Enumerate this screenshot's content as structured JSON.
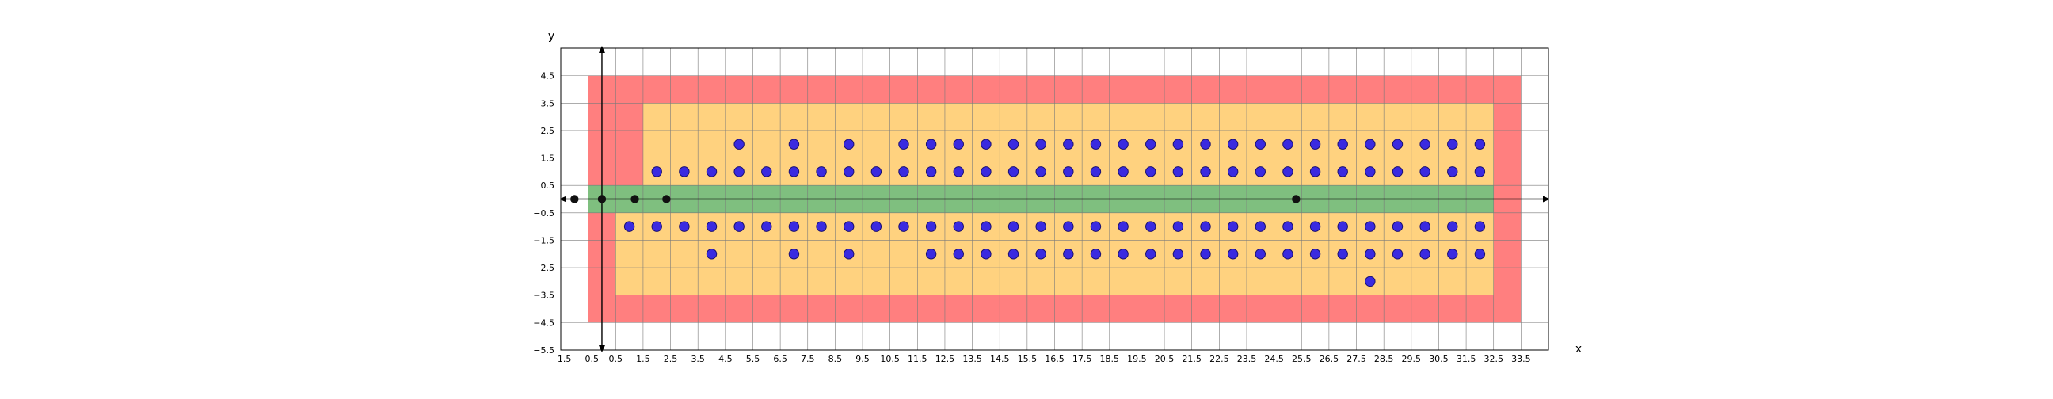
{
  "chart_data": {
    "type": "scatter",
    "title": "",
    "xlabel": "x",
    "ylabel": "y",
    "xlim": [
      -1.5,
      34.5
    ],
    "ylim": [
      -5.5,
      5.5
    ],
    "grid": true,
    "x_ticks": [
      -1.5,
      -0.5,
      0.5,
      1.5,
      2.5,
      3.5,
      4.5,
      5.5,
      6.5,
      7.5,
      8.5,
      9.5,
      10.5,
      11.5,
      12.5,
      13.5,
      14.5,
      15.5,
      16.5,
      17.5,
      18.5,
      19.5,
      20.5,
      21.5,
      22.5,
      23.5,
      24.5,
      25.5,
      26.5,
      27.5,
      28.5,
      29.5,
      30.5,
      31.5,
      32.5,
      33.5
    ],
    "x_tick_labels": [
      "−1.5",
      "−0.5",
      "0.5",
      "1.5",
      "2.5",
      "3.5",
      "4.5",
      "5.5",
      "6.5",
      "7.5",
      "8.5",
      "9.5",
      "10.5",
      "11.5",
      "12.5",
      "13.5",
      "14.5",
      "15.5",
      "16.5",
      "17.5",
      "18.5",
      "19.5",
      "20.5",
      "21.5",
      "22.5",
      "23.5",
      "24.5",
      "25.5",
      "26.5",
      "27.5",
      "28.5",
      "29.5",
      "30.5",
      "31.5",
      "32.5",
      "33.5"
    ],
    "y_ticks": [
      4.5,
      3.5,
      2.5,
      1.5,
      0.5,
      -0.5,
      -1.5,
      -2.5,
      -3.5,
      -4.5,
      -5.5
    ],
    "y_tick_labels": [
      "4.5",
      "3.5",
      "2.5",
      "1.5",
      "0.5",
      "−0.5",
      "−1.5",
      "−2.5",
      "−3.5",
      "−4.5",
      "−5.5"
    ],
    "regions": [
      {
        "kind": "red",
        "color": "#ff7f7f",
        "x": [
          -0.5,
          33.5
        ],
        "y": [
          -4.5,
          4.5
        ]
      },
      {
        "kind": "orange-upper",
        "color": "#ffd27f",
        "x": [
          1.5,
          32.5
        ],
        "y": [
          0.5,
          3.5
        ]
      },
      {
        "kind": "orange-lower",
        "color": "#ffd27f",
        "x": [
          0.5,
          32.5
        ],
        "y": [
          -3.5,
          -0.5
        ]
      },
      {
        "kind": "green",
        "color": "#7fbf7f",
        "x": [
          -0.5,
          32.5
        ],
        "y": [
          -0.5,
          0.5
        ]
      }
    ],
    "blue_points": {
      "color": "#3a2ae0",
      "edge": "#1a1070",
      "y2_x": [
        5,
        7,
        9,
        11,
        12,
        13,
        14,
        15,
        16,
        17,
        18,
        19,
        20,
        21,
        22,
        23,
        24,
        25,
        26,
        27,
        28,
        29,
        30,
        31,
        32
      ],
      "y1_x": [
        2,
        3,
        4,
        5,
        6,
        7,
        8,
        9,
        10,
        11,
        12,
        13,
        14,
        15,
        16,
        17,
        18,
        19,
        20,
        21,
        22,
        23,
        24,
        25,
        26,
        27,
        28,
        29,
        30,
        31,
        32
      ],
      "ym1_x": [
        1,
        2,
        3,
        4,
        5,
        6,
        7,
        8,
        9,
        10,
        11,
        12,
        13,
        14,
        15,
        16,
        17,
        18,
        19,
        20,
        21,
        22,
        23,
        24,
        25,
        26,
        27,
        28,
        29,
        30,
        31,
        32
      ],
      "ym2_x": [
        4,
        7,
        9,
        12,
        13,
        14,
        15,
        16,
        17,
        18,
        19,
        20,
        21,
        22,
        23,
        24,
        25,
        26,
        27,
        28,
        29,
        30,
        31,
        32
      ],
      "ym3_x": [
        28
      ]
    },
    "black_points": {
      "color": "#111111",
      "x": [
        -1,
        0,
        1.2,
        2.35,
        25.3
      ],
      "y": [
        0,
        0,
        0,
        0,
        0
      ]
    }
  }
}
